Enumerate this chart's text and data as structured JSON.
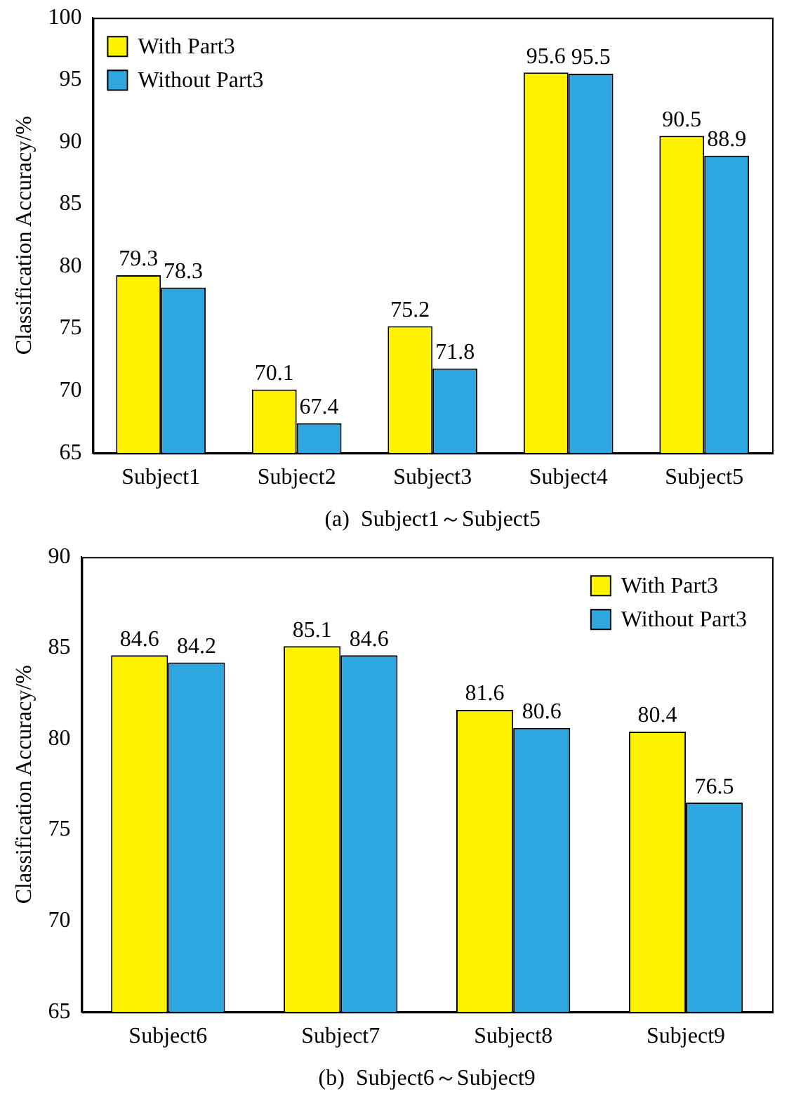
{
  "chart_data": [
    {
      "type": "bar",
      "xlabel": "(a)  Subject1～Subject5",
      "ylabel": "Classification Accuracy/%",
      "categories": [
        "Subject1",
        "Subject2",
        "Subject3",
        "Subject4",
        "Subject5"
      ],
      "series": [
        {
          "name": "With Part3",
          "color": "#fff200",
          "values": [
            79.3,
            70.1,
            75.2,
            95.6,
            90.5
          ]
        },
        {
          "name": "Without Part3",
          "color": "#2ea7e0",
          "values": [
            78.3,
            67.4,
            71.8,
            95.5,
            88.9
          ]
        }
      ],
      "ylim": [
        65,
        100
      ],
      "yticks": [
        65,
        70,
        75,
        80,
        85,
        90,
        95,
        100
      ],
      "grid": false,
      "legend": "top left",
      "data_labels": true
    },
    {
      "type": "bar",
      "xlabel": "(b)  Subject6～Subject9",
      "ylabel": "Classification Accuracy/%",
      "categories": [
        "Subject6",
        "Subject7",
        "Subject8",
        "Subject9"
      ],
      "series": [
        {
          "name": "With Part3",
          "color": "#fff200",
          "values": [
            84.6,
            85.1,
            81.6,
            80.4
          ]
        },
        {
          "name": "Without Part3",
          "color": "#2ea7e0",
          "values": [
            84.2,
            84.6,
            80.6,
            76.5
          ]
        }
      ],
      "ylim": [
        65,
        90
      ],
      "yticks": [
        65,
        70,
        75,
        80,
        85,
        90
      ],
      "grid": false,
      "legend": "top right",
      "data_labels": true
    }
  ]
}
